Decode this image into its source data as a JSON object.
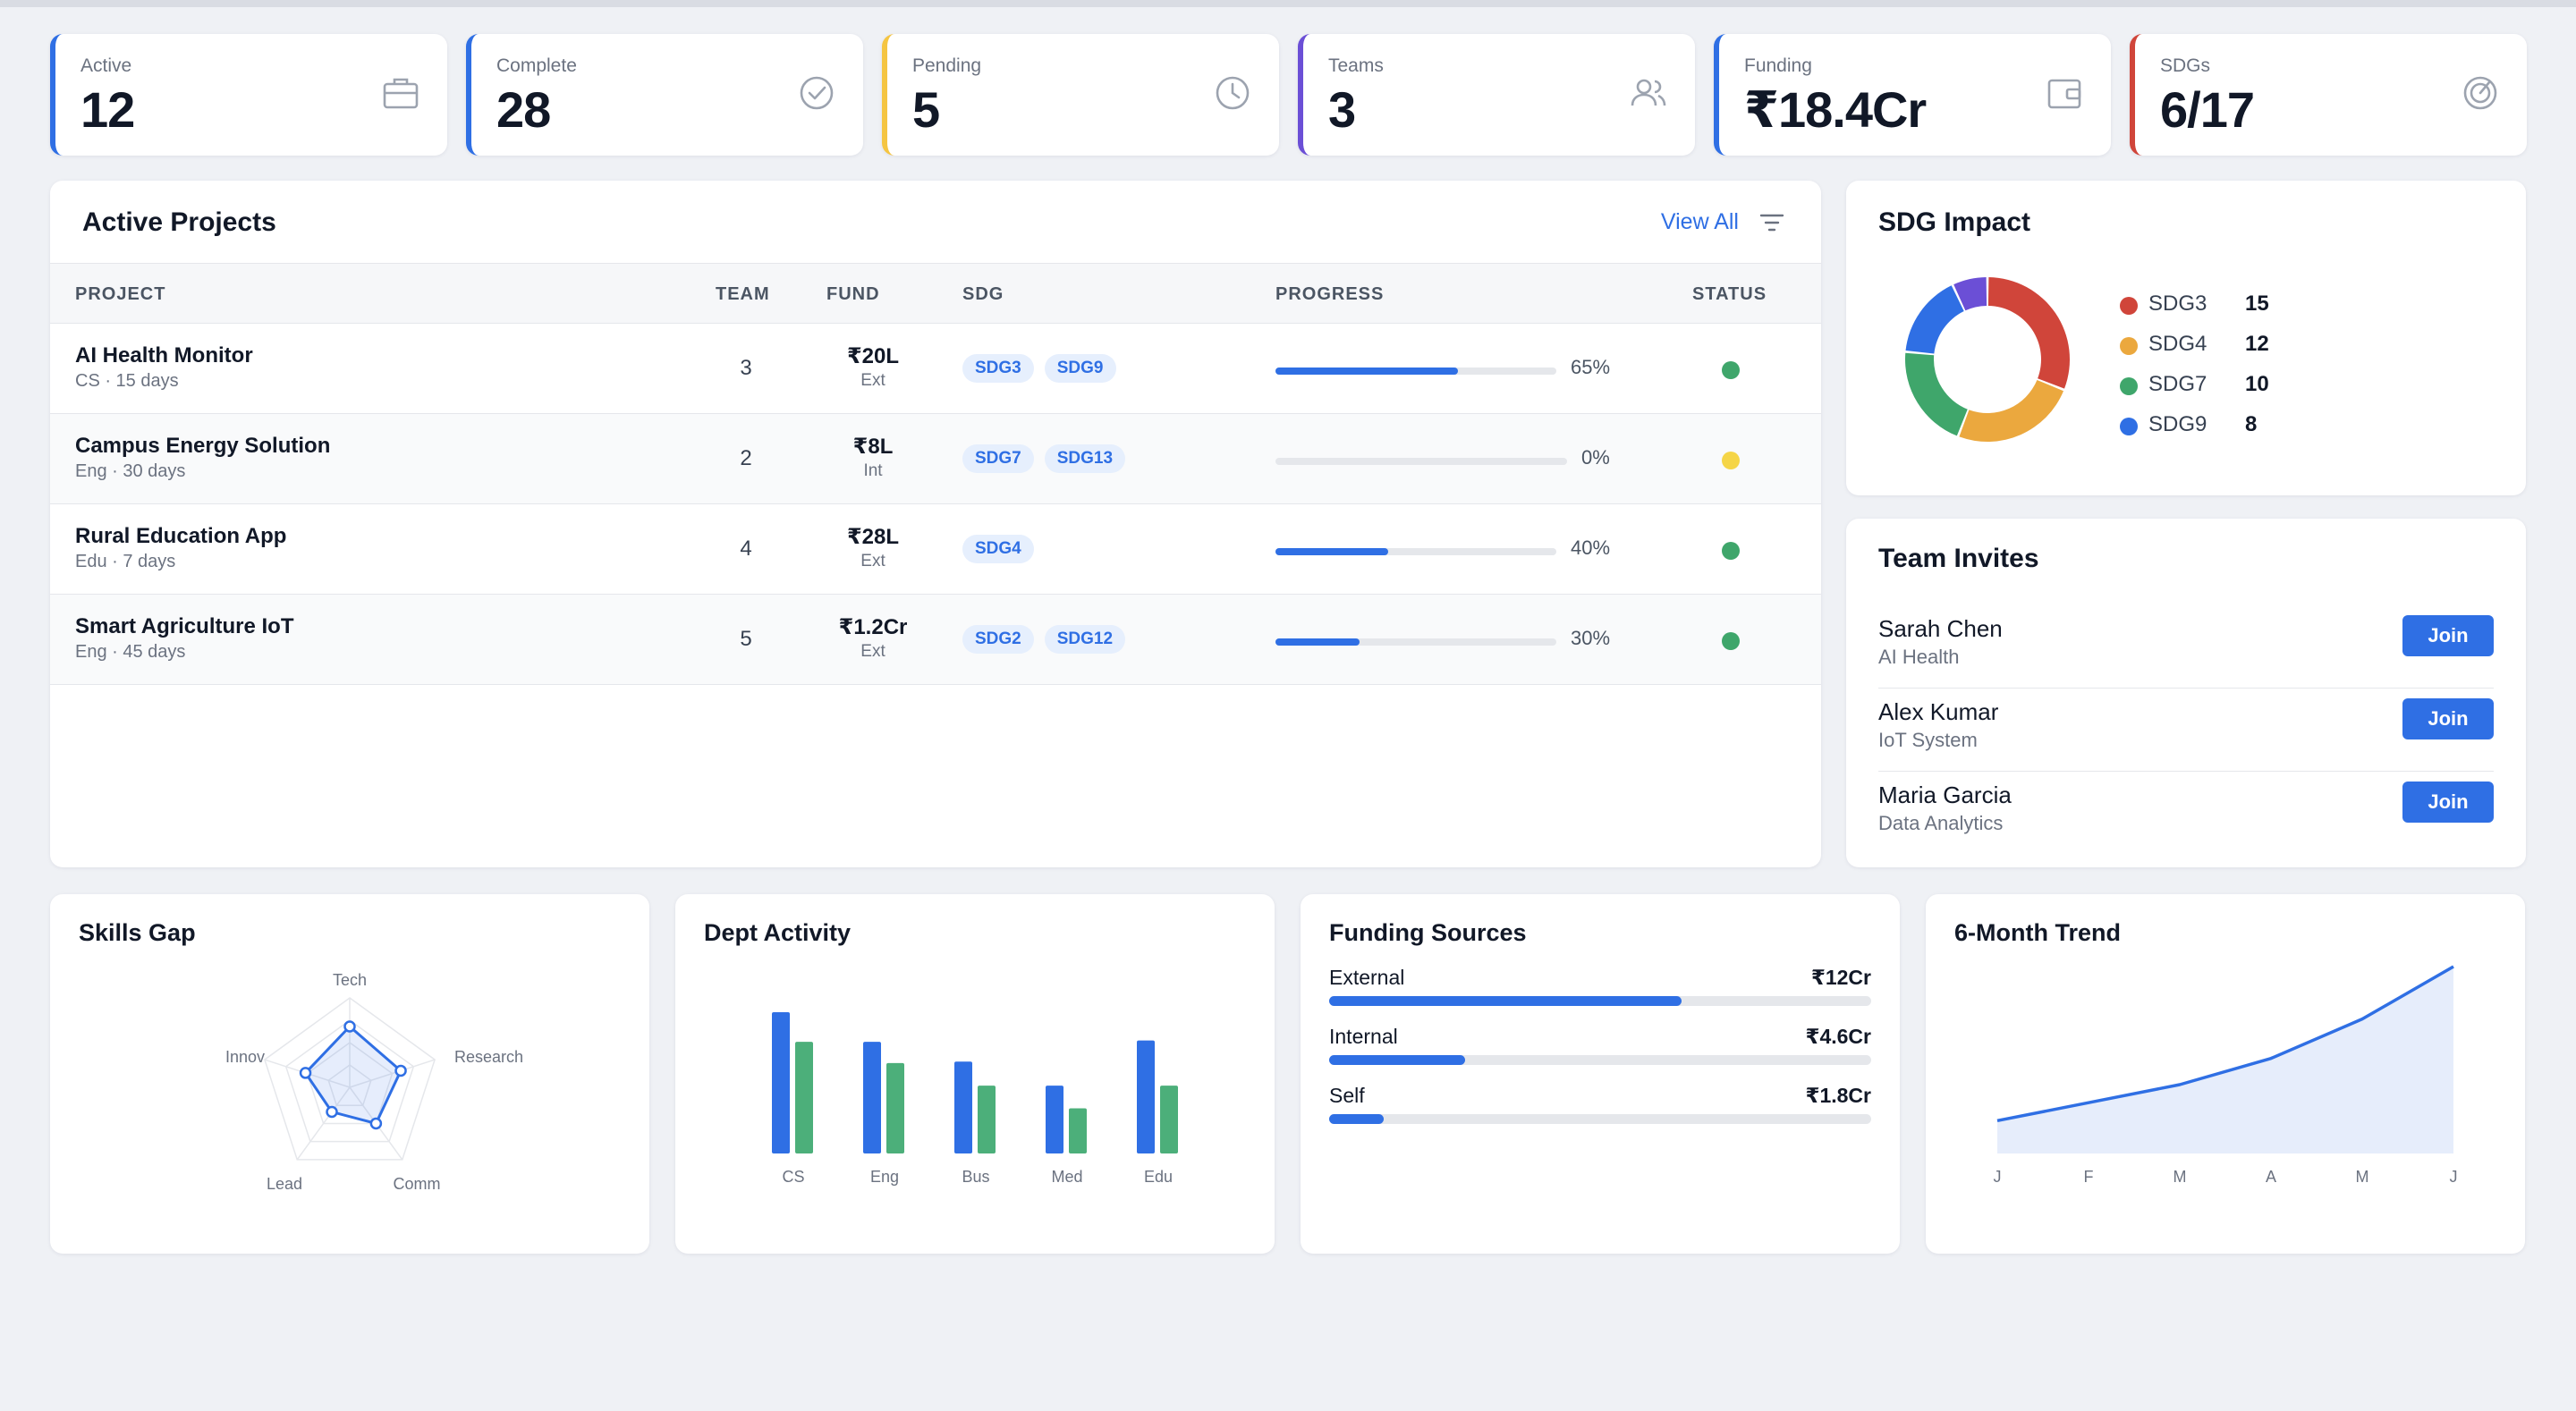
{
  "stats": [
    {
      "label": "Active",
      "value": "12",
      "color": "#2f6fe4",
      "icon": "briefcase-icon"
    },
    {
      "label": "Complete",
      "value": "28",
      "color": "#2f6fe4",
      "icon": "check-circle-icon"
    },
    {
      "label": "Pending",
      "value": "5",
      "color": "#f5c542",
      "icon": "clock-icon"
    },
    {
      "label": "Teams",
      "value": "3",
      "color": "#6b4fd6",
      "icon": "users-icon"
    },
    {
      "label": "Funding",
      "value": "₹18.4Cr",
      "color": "#2f6fe4",
      "icon": "wallet-icon"
    },
    {
      "label": "SDGs",
      "value": "6/17",
      "color": "#d0453a",
      "icon": "target-icon"
    }
  ],
  "projects": {
    "title": "Active Projects",
    "view_all": "View All",
    "columns": {
      "project": "PROJECT",
      "team": "TEAM",
      "fund": "FUND",
      "sdg": "SDG",
      "progress": "PROGRESS",
      "status": "STATUS"
    },
    "rows": [
      {
        "name": "AI Health Monitor",
        "meta": "CS · 15 days",
        "team": "3",
        "fund": "₹20L",
        "fund_type": "Ext",
        "sdgs": [
          "SDG3",
          "SDG9"
        ],
        "progress": 65,
        "progress_label": "65%",
        "status_color": "#3fa66b"
      },
      {
        "name": "Campus Energy Solution",
        "meta": "Eng · 30 days",
        "team": "2",
        "fund": "₹8L",
        "fund_type": "Int",
        "sdgs": [
          "SDG7",
          "SDG13"
        ],
        "progress": 0,
        "progress_label": "0%",
        "status_color": "#f5d547"
      },
      {
        "name": "Rural Education App",
        "meta": "Edu · 7 days",
        "team": "4",
        "fund": "₹28L",
        "fund_type": "Ext",
        "sdgs": [
          "SDG4"
        ],
        "progress": 40,
        "progress_label": "40%",
        "status_color": "#3fa66b"
      },
      {
        "name": "Smart Agriculture IoT",
        "meta": "Eng · 45 days",
        "team": "5",
        "fund": "₹1.2Cr",
        "fund_type": "Ext",
        "sdgs": [
          "SDG2",
          "SDG12"
        ],
        "progress": 30,
        "progress_label": "30%",
        "status_color": "#3fa66b"
      }
    ]
  },
  "sdg_impact": {
    "title": "SDG Impact",
    "items": [
      {
        "name": "SDG3",
        "value": "15",
        "color": "#d0453a"
      },
      {
        "name": "SDG4",
        "value": "12",
        "color": "#eba83e"
      },
      {
        "name": "SDG7",
        "value": "10",
        "color": "#3fa66b"
      },
      {
        "name": "SDG9",
        "value": "8",
        "color": "#2f6fe4"
      }
    ],
    "extra_segment_color": "#6b4fd6"
  },
  "invites": {
    "title": "Team Invites",
    "join_label": "Join",
    "items": [
      {
        "name": "Sarah Chen",
        "project": "AI Health"
      },
      {
        "name": "Alex Kumar",
        "project": "IoT System"
      },
      {
        "name": "Maria Garcia",
        "project": "Data Analytics"
      }
    ]
  },
  "skills_gap": {
    "title": "Skills Gap",
    "axes": [
      "Tech",
      "Research",
      "Comm",
      "Lead",
      "Innov"
    ],
    "values": [
      0.68,
      0.6,
      0.5,
      0.34,
      0.52
    ]
  },
  "dept_activity": {
    "title": "Dept Activity",
    "categories": [
      "CS",
      "Eng",
      "Bus",
      "Med",
      "Edu"
    ],
    "series": [
      {
        "values": [
          100,
          79,
          65,
          48,
          80
        ],
        "color": "#2f6fe4"
      },
      {
        "values": [
          79,
          64,
          48,
          32,
          48
        ],
        "color": "#4caf7a"
      }
    ]
  },
  "funding_sources": {
    "title": "Funding Sources",
    "items": [
      {
        "label": "External",
        "value": "₹12Cr",
        "fraction": 0.65
      },
      {
        "label": "Internal",
        "value": "₹4.6Cr",
        "fraction": 0.25
      },
      {
        "label": "Self",
        "value": "₹1.8Cr",
        "fraction": 0.1
      }
    ]
  },
  "trend": {
    "title": "6-Month Trend",
    "labels": [
      "J",
      "F",
      "M",
      "A",
      "M",
      "J"
    ],
    "values": [
      20,
      31,
      42,
      58,
      82,
      114
    ]
  }
}
